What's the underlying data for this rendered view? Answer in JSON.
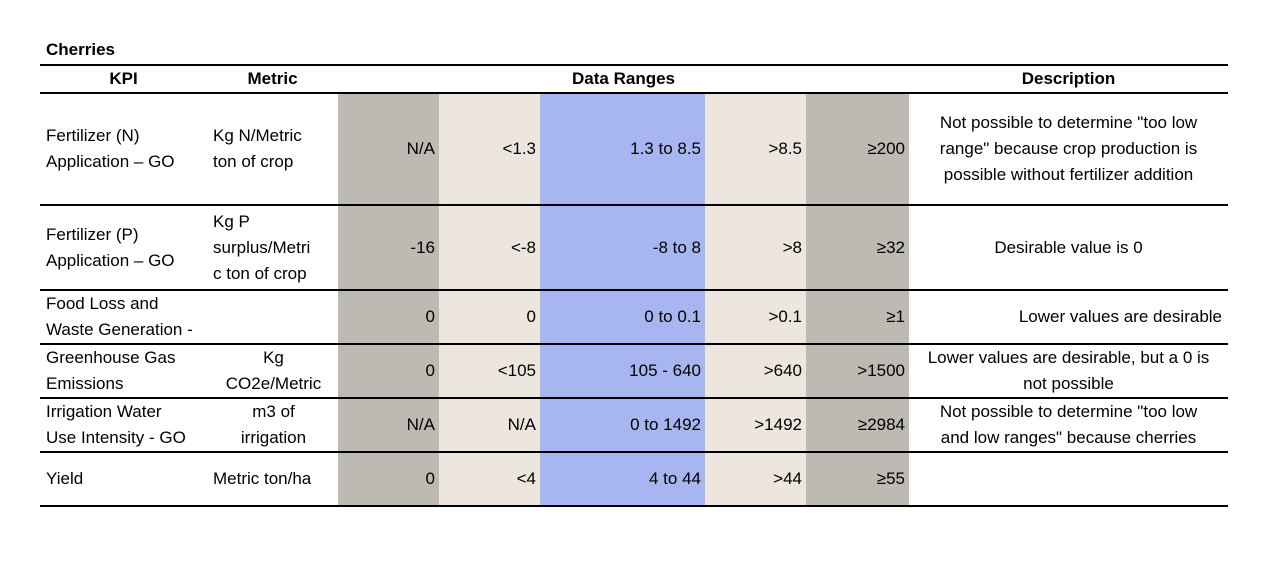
{
  "title": "Cherries",
  "headers": {
    "kpi": "KPI",
    "metric": "Metric",
    "ranges": "Data Ranges",
    "description": "Description"
  },
  "colors": {
    "dark_band": "#bdb9b3",
    "light_band": "#ece6df",
    "target_band": "#a7b5f0"
  },
  "rows": [
    {
      "kpi": [
        "Fertilizer (N)",
        "Application – GO"
      ],
      "metric": [
        "Kg N/Metric",
        "ton of crop"
      ],
      "ranges": [
        "N/A",
        "<1.3",
        "1.3 to 8.5",
        ">8.5",
        "≥200"
      ],
      "description": [
        "Not possible to determine \"too low",
        "range\" because crop production is",
        "possible without fertilizer addition"
      ]
    },
    {
      "kpi": [
        "Fertilizer (P)",
        "Application – GO"
      ],
      "metric": [
        "Kg P",
        "surplus/Metri",
        "c ton of crop"
      ],
      "ranges": [
        "-16",
        "<-8",
        "-8 to 8",
        ">8",
        "≥32"
      ],
      "description": [
        "Desirable value is 0"
      ]
    },
    {
      "kpi": [
        "Food Loss and",
        "Waste Generation -"
      ],
      "metric": [],
      "ranges": [
        "0",
        "0",
        "0 to 0.1",
        ">0.1",
        "≥1"
      ],
      "description": [
        "Lower values are desirable"
      ]
    },
    {
      "kpi": [
        "Greenhouse Gas",
        "Emissions"
      ],
      "metric": [
        "Kg",
        "CO2e/Metric"
      ],
      "ranges": [
        "0",
        "<105",
        "105 - 640",
        ">640",
        ">1500"
      ],
      "description": [
        "Lower values are desirable, but a 0 is",
        "not possible"
      ]
    },
    {
      "kpi": [
        "Irrigation Water",
        "Use Intensity - GO"
      ],
      "metric": [
        "m3 of",
        "irrigation"
      ],
      "ranges": [
        "N/A",
        "N/A",
        "0 to 1492",
        ">1492",
        "≥2984"
      ],
      "description": [
        "Not possible to determine \"too low",
        "and low ranges\" because cherries"
      ]
    },
    {
      "kpi": [
        "Yield"
      ],
      "metric": [
        "Metric ton/ha"
      ],
      "ranges": [
        "0",
        "<4",
        "4  to 44",
        ">44",
        "≥55"
      ],
      "description": []
    }
  ]
}
